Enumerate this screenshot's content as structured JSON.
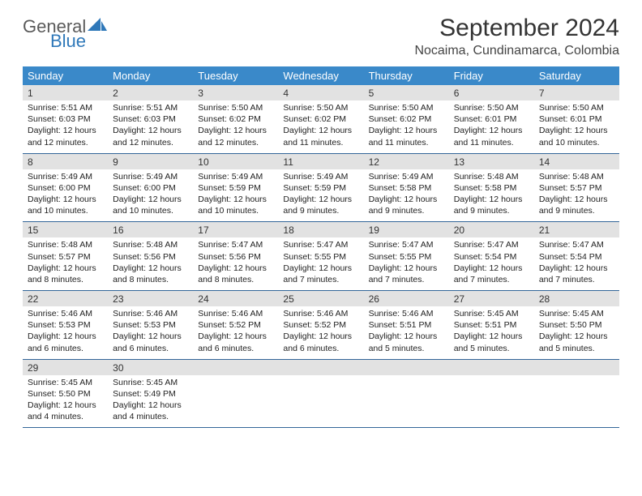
{
  "logo": {
    "line1": "General",
    "line2": "Blue",
    "sail_color": "#2f78b9"
  },
  "title": "September 2024",
  "location": "Nocaima, Cundinamarca, Colombia",
  "header_bg": "#3a89c9",
  "daynum_bg": "#e2e2e2",
  "week_border": "#336699",
  "day_names": [
    "Sunday",
    "Monday",
    "Tuesday",
    "Wednesday",
    "Thursday",
    "Friday",
    "Saturday"
  ],
  "weeks": [
    {
      "nums": [
        "1",
        "2",
        "3",
        "4",
        "5",
        "6",
        "7"
      ],
      "cells": [
        {
          "sunrise": "5:51 AM",
          "sunset": "6:03 PM",
          "daylight": "12 hours and 12 minutes."
        },
        {
          "sunrise": "5:51 AM",
          "sunset": "6:03 PM",
          "daylight": "12 hours and 12 minutes."
        },
        {
          "sunrise": "5:50 AM",
          "sunset": "6:02 PM",
          "daylight": "12 hours and 12 minutes."
        },
        {
          "sunrise": "5:50 AM",
          "sunset": "6:02 PM",
          "daylight": "12 hours and 11 minutes."
        },
        {
          "sunrise": "5:50 AM",
          "sunset": "6:02 PM",
          "daylight": "12 hours and 11 minutes."
        },
        {
          "sunrise": "5:50 AM",
          "sunset": "6:01 PM",
          "daylight": "12 hours and 11 minutes."
        },
        {
          "sunrise": "5:50 AM",
          "sunset": "6:01 PM",
          "daylight": "12 hours and 10 minutes."
        }
      ]
    },
    {
      "nums": [
        "8",
        "9",
        "10",
        "11",
        "12",
        "13",
        "14"
      ],
      "cells": [
        {
          "sunrise": "5:49 AM",
          "sunset": "6:00 PM",
          "daylight": "12 hours and 10 minutes."
        },
        {
          "sunrise": "5:49 AM",
          "sunset": "6:00 PM",
          "daylight": "12 hours and 10 minutes."
        },
        {
          "sunrise": "5:49 AM",
          "sunset": "5:59 PM",
          "daylight": "12 hours and 10 minutes."
        },
        {
          "sunrise": "5:49 AM",
          "sunset": "5:59 PM",
          "daylight": "12 hours and 9 minutes."
        },
        {
          "sunrise": "5:49 AM",
          "sunset": "5:58 PM",
          "daylight": "12 hours and 9 minutes."
        },
        {
          "sunrise": "5:48 AM",
          "sunset": "5:58 PM",
          "daylight": "12 hours and 9 minutes."
        },
        {
          "sunrise": "5:48 AM",
          "sunset": "5:57 PM",
          "daylight": "12 hours and 9 minutes."
        }
      ]
    },
    {
      "nums": [
        "15",
        "16",
        "17",
        "18",
        "19",
        "20",
        "21"
      ],
      "cells": [
        {
          "sunrise": "5:48 AM",
          "sunset": "5:57 PM",
          "daylight": "12 hours and 8 minutes."
        },
        {
          "sunrise": "5:48 AM",
          "sunset": "5:56 PM",
          "daylight": "12 hours and 8 minutes."
        },
        {
          "sunrise": "5:47 AM",
          "sunset": "5:56 PM",
          "daylight": "12 hours and 8 minutes."
        },
        {
          "sunrise": "5:47 AM",
          "sunset": "5:55 PM",
          "daylight": "12 hours and 7 minutes."
        },
        {
          "sunrise": "5:47 AM",
          "sunset": "5:55 PM",
          "daylight": "12 hours and 7 minutes."
        },
        {
          "sunrise": "5:47 AM",
          "sunset": "5:54 PM",
          "daylight": "12 hours and 7 minutes."
        },
        {
          "sunrise": "5:47 AM",
          "sunset": "5:54 PM",
          "daylight": "12 hours and 7 minutes."
        }
      ]
    },
    {
      "nums": [
        "22",
        "23",
        "24",
        "25",
        "26",
        "27",
        "28"
      ],
      "cells": [
        {
          "sunrise": "5:46 AM",
          "sunset": "5:53 PM",
          "daylight": "12 hours and 6 minutes."
        },
        {
          "sunrise": "5:46 AM",
          "sunset": "5:53 PM",
          "daylight": "12 hours and 6 minutes."
        },
        {
          "sunrise": "5:46 AM",
          "sunset": "5:52 PM",
          "daylight": "12 hours and 6 minutes."
        },
        {
          "sunrise": "5:46 AM",
          "sunset": "5:52 PM",
          "daylight": "12 hours and 6 minutes."
        },
        {
          "sunrise": "5:46 AM",
          "sunset": "5:51 PM",
          "daylight": "12 hours and 5 minutes."
        },
        {
          "sunrise": "5:45 AM",
          "sunset": "5:51 PM",
          "daylight": "12 hours and 5 minutes."
        },
        {
          "sunrise": "5:45 AM",
          "sunset": "5:50 PM",
          "daylight": "12 hours and 5 minutes."
        }
      ]
    },
    {
      "nums": [
        "29",
        "30",
        "",
        "",
        "",
        "",
        ""
      ],
      "cells": [
        {
          "sunrise": "5:45 AM",
          "sunset": "5:50 PM",
          "daylight": "12 hours and 4 minutes."
        },
        {
          "sunrise": "5:45 AM",
          "sunset": "5:49 PM",
          "daylight": "12 hours and 4 minutes."
        },
        null,
        null,
        null,
        null,
        null
      ]
    }
  ],
  "labels": {
    "sunrise": "Sunrise:",
    "sunset": "Sunset:",
    "daylight": "Daylight:"
  }
}
